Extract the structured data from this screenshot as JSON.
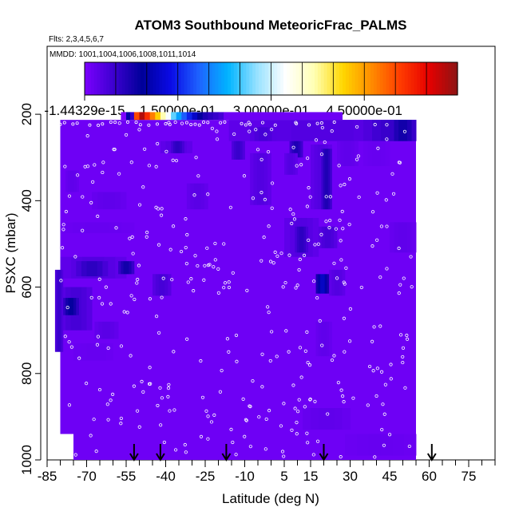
{
  "chart_data": {
    "type": "heatmap",
    "title": "ATOM3 Southbound MeteoricFrac_PALMS",
    "flights_text": "Flts: 2,3,4,5,6,7",
    "dates_text": "MMDD: 1001,1004,1006,1008,1011,1014",
    "xlabel": "Latitude (deg N)",
    "ylabel": "PSXC (mbar)",
    "xlim": [
      -85,
      85
    ],
    "ylim": [
      1000,
      100
    ],
    "x_ticks": [
      -85,
      -70,
      -55,
      -40,
      -25,
      -10,
      5,
      15,
      30,
      45,
      60,
      75
    ],
    "x_tick_labels": [
      "-85",
      "-70",
      "-55",
      "-40",
      "-25",
      "-10",
      "5",
      "15",
      "30",
      "45",
      "60",
      "75"
    ],
    "y_ticks": [
      200,
      400,
      600,
      800,
      1000
    ],
    "y_tick_labels": [
      "200",
      "400",
      "600",
      "800",
      "1000"
    ],
    "colorbar": {
      "min": -1.44329e-15,
      "max": 0.6,
      "ticks": [
        0,
        0.15,
        0.3,
        0.45
      ],
      "tick_labels": [
        "-1.44329e-15",
        "1.50000e-01",
        "3.00000e-01",
        "4.50000e-01"
      ],
      "colors": [
        "#7b00ff",
        "#3d00d0",
        "#00009a",
        "#0a0ae6",
        "#1e64ff",
        "#00b4ff",
        "#96e1ff",
        "#ffffff",
        "#ffffb4",
        "#ffd700",
        "#ff8c00",
        "#ff3c00",
        "#e60000",
        "#8c1414"
      ]
    },
    "background_value": 0.01,
    "top_layer": {
      "p_range": [
        195,
        213
      ],
      "lat_range": [
        -57,
        27
      ],
      "cells": [
        {
          "lat0": -57,
          "lat1": -55,
          "value": 0.0
        },
        {
          "lat0": -55,
          "lat1": -53.5,
          "value": 0.1
        },
        {
          "lat0": -53.5,
          "lat1": -52,
          "value": 0.05
        },
        {
          "lat0": -52,
          "lat1": -50,
          "value": 0.5
        },
        {
          "lat0": -50,
          "lat1": -48,
          "value": 0.58
        },
        {
          "lat0": -48,
          "lat1": -46,
          "value": 0.52
        },
        {
          "lat0": -46,
          "lat1": -44,
          "value": 0.47
        },
        {
          "lat0": -44,
          "lat1": -42,
          "value": 0.42
        },
        {
          "lat0": -42,
          "lat1": -40,
          "value": 0.37
        },
        {
          "lat0": -40,
          "lat1": -38,
          "value": 0.32
        },
        {
          "lat0": -38,
          "lat1": -36,
          "value": 0.26
        },
        {
          "lat0": -36,
          "lat1": -34,
          "value": 0.22
        },
        {
          "lat0": -34,
          "lat1": -32,
          "value": 0.18
        },
        {
          "lat0": -32,
          "lat1": -30,
          "value": 0.15
        },
        {
          "lat0": -30,
          "lat1": -28,
          "value": 0.12
        },
        {
          "lat0": -28,
          "lat1": -26,
          "value": 0.09
        },
        {
          "lat0": -26,
          "lat1": -24,
          "value": 0.07
        },
        {
          "lat0": -24,
          "lat1": -22,
          "value": 0.06
        },
        {
          "lat0": -22,
          "lat1": -20,
          "value": 0.05
        },
        {
          "lat0": -20,
          "lat1": -18,
          "value": 0.04
        },
        {
          "lat0": -18,
          "lat1": 27,
          "value": 0.01
        }
      ]
    },
    "main_region": [
      {
        "lat0": -80,
        "lat1": -75,
        "p_top": 213,
        "p_bot": 940
      },
      {
        "lat0": -75,
        "lat1": 55,
        "p_top": 213,
        "p_bot": 1000
      }
    ],
    "features": [
      {
        "lat0": -16,
        "lat1": 55,
        "p0": 213,
        "p1": 262,
        "value": 0.03
      },
      {
        "lat0": 35,
        "lat1": 55,
        "p0": 213,
        "p1": 262,
        "value": 0.05
      },
      {
        "lat0": 45,
        "lat1": 55,
        "p0": 213,
        "p1": 262,
        "value": 0.08
      },
      {
        "lat0": -8,
        "lat1": 2,
        "p0": 230,
        "p1": 262,
        "value": 0.04
      },
      {
        "lat0": -42,
        "lat1": -30,
        "p0": 262,
        "p1": 290,
        "value": 0.03
      },
      {
        "lat0": -38,
        "lat1": -33,
        "p0": 262,
        "p1": 290,
        "value": 0.06
      },
      {
        "lat0": -15,
        "lat1": -10,
        "p0": 262,
        "p1": 305,
        "value": 0.05
      },
      {
        "lat0": 7,
        "lat1": 12,
        "p0": 262,
        "p1": 300,
        "value": 0.07
      },
      {
        "lat0": 15,
        "lat1": 23,
        "p0": 270,
        "p1": 420,
        "value": 0.03
      },
      {
        "lat0": 19,
        "lat1": 23,
        "p0": 280,
        "p1": 420,
        "value": 0.07
      },
      {
        "lat0": 5,
        "lat1": 10,
        "p0": 290,
        "p1": 340,
        "value": 0.03
      },
      {
        "lat0": -8,
        "lat1": 0,
        "p0": 290,
        "p1": 410,
        "value": 0.03
      },
      {
        "lat0": 25,
        "lat1": 33,
        "p0": 262,
        "p1": 320,
        "value": 0.02
      },
      {
        "lat0": 35,
        "lat1": 45,
        "p0": 262,
        "p1": 320,
        "value": 0.015
      },
      {
        "lat0": -78,
        "lat1": -73,
        "p0": 330,
        "p1": 380,
        "value": 0.02
      },
      {
        "lat0": -32,
        "lat1": -24,
        "p0": 360,
        "p1": 420,
        "value": 0.025
      },
      {
        "lat0": -68,
        "lat1": -55,
        "p0": 380,
        "p1": 420,
        "value": 0.02
      },
      {
        "lat0": -80,
        "lat1": -52,
        "p0": 450,
        "p1": 475,
        "value": 0.015
      },
      {
        "lat0": 5,
        "lat1": 18,
        "p0": 440,
        "p1": 530,
        "value": 0.03
      },
      {
        "lat0": 9,
        "lat1": 14,
        "p0": 460,
        "p1": 520,
        "value": 0.06
      },
      {
        "lat0": 18,
        "lat1": 25,
        "p0": 460,
        "p1": 510,
        "value": 0.04
      },
      {
        "lat0": 45,
        "lat1": 55,
        "p0": 450,
        "p1": 520,
        "value": 0.02
      },
      {
        "lat0": -80,
        "lat1": -55,
        "p0": 530,
        "p1": 580,
        "value": 0.03
      },
      {
        "lat0": -74,
        "lat1": -62,
        "p0": 540,
        "p1": 575,
        "value": 0.06
      },
      {
        "lat0": -58,
        "lat1": -52,
        "p0": 540,
        "p1": 570,
        "value": 0.08
      },
      {
        "lat0": -45,
        "lat1": -38,
        "p0": 570,
        "p1": 620,
        "value": 0.04
      },
      {
        "lat0": 17,
        "lat1": 22,
        "p0": 570,
        "p1": 615,
        "value": 0.12
      },
      {
        "lat0": 22,
        "lat1": 28,
        "p0": 560,
        "p1": 620,
        "value": 0.03
      },
      {
        "lat0": -80,
        "lat1": -68,
        "p0": 600,
        "p1": 700,
        "value": 0.04
      },
      {
        "lat0": -79,
        "lat1": -73,
        "p0": 625,
        "p1": 665,
        "value": 0.09
      },
      {
        "lat0": -82,
        "lat1": -79,
        "p0": 560,
        "p1": 750,
        "value": 0.05
      },
      {
        "lat0": -67,
        "lat1": -58,
        "p0": 680,
        "p1": 720,
        "value": 0.025
      },
      {
        "lat0": -75,
        "lat1": -60,
        "p0": 730,
        "p1": 770,
        "value": 0.015
      },
      {
        "lat0": 17,
        "lat1": 23,
        "p0": 680,
        "p1": 760,
        "value": 0.02
      },
      {
        "lat0": 12,
        "lat1": 30,
        "p0": 880,
        "p1": 930,
        "value": 0.02
      },
      {
        "lat0": 28,
        "lat1": 55,
        "p0": 940,
        "p1": 990,
        "value": 0.015
      }
    ],
    "markers": {
      "description": "downward arrows marking flight locations along the bottom axis",
      "latitudes": [
        -52,
        -42,
        -17,
        20,
        61
      ]
    },
    "observations": {
      "description": "open circles marking individual sample points",
      "count": 360
    }
  }
}
